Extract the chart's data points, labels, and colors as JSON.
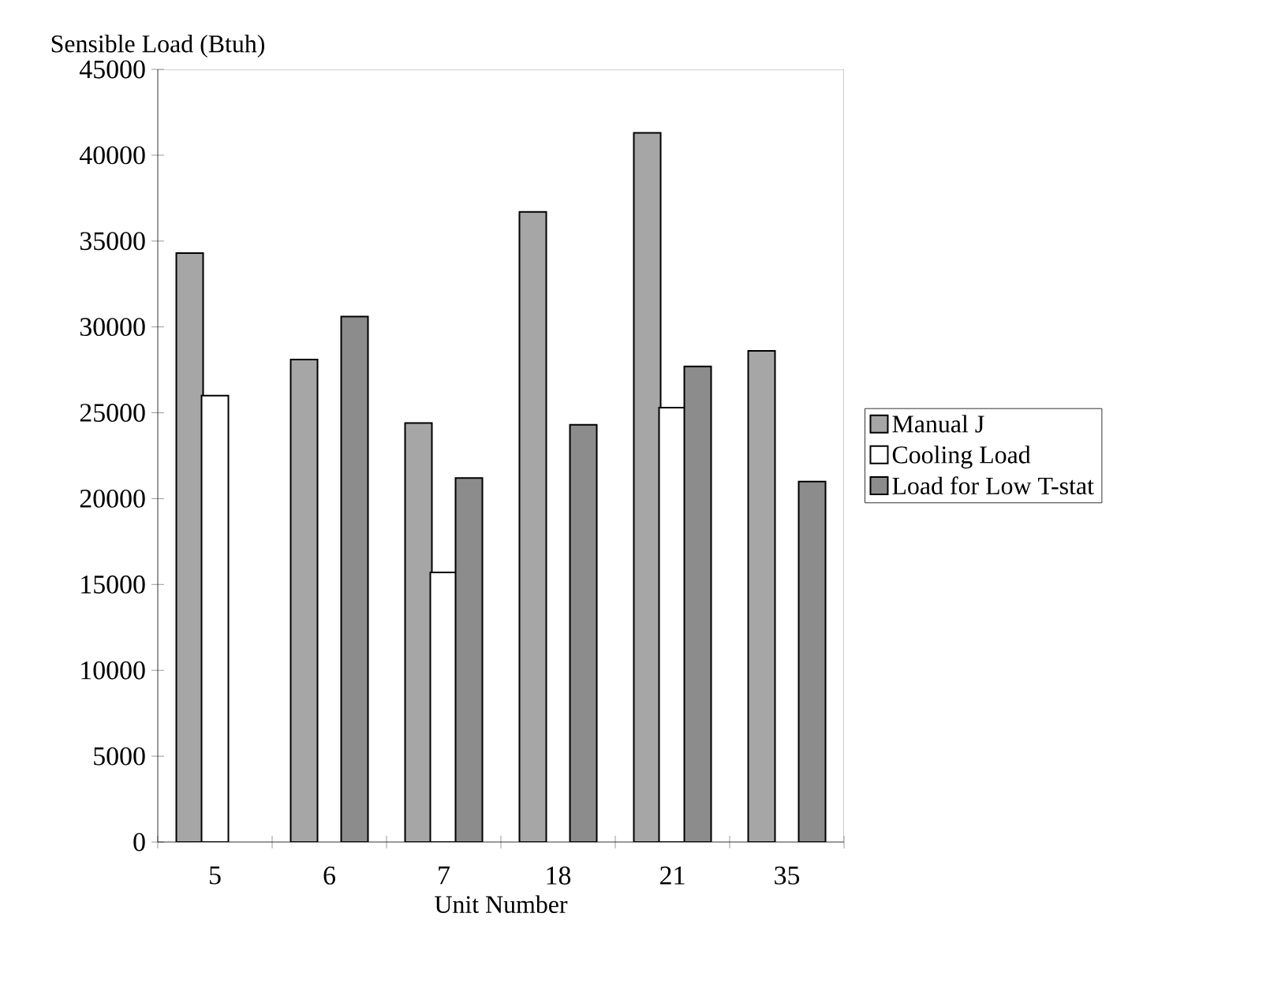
{
  "chart_data": {
    "type": "bar",
    "ylabel": "Sensible Load (Btuh)",
    "xlabel": "Unit Number",
    "categories": [
      "5",
      "6",
      "7",
      "18",
      "21",
      "35"
    ],
    "series": [
      {
        "name": "Manual J",
        "color": "#a6a6a6",
        "values": [
          34300,
          28100,
          24400,
          36700,
          41300,
          28600
        ]
      },
      {
        "name": "Cooling Load",
        "color": "#ffffff",
        "values": [
          26000,
          null,
          15700,
          null,
          25300,
          null
        ]
      },
      {
        "name": "Load for Low T-stat",
        "color": "#8c8c8c",
        "values": [
          null,
          30600,
          21200,
          24300,
          27700,
          21000
        ]
      }
    ],
    "ylim": [
      0,
      45000
    ],
    "yticks": [
      0,
      5000,
      10000,
      15000,
      20000,
      25000,
      30000,
      35000,
      40000,
      45000
    ],
    "legend": "right",
    "grid": false
  }
}
